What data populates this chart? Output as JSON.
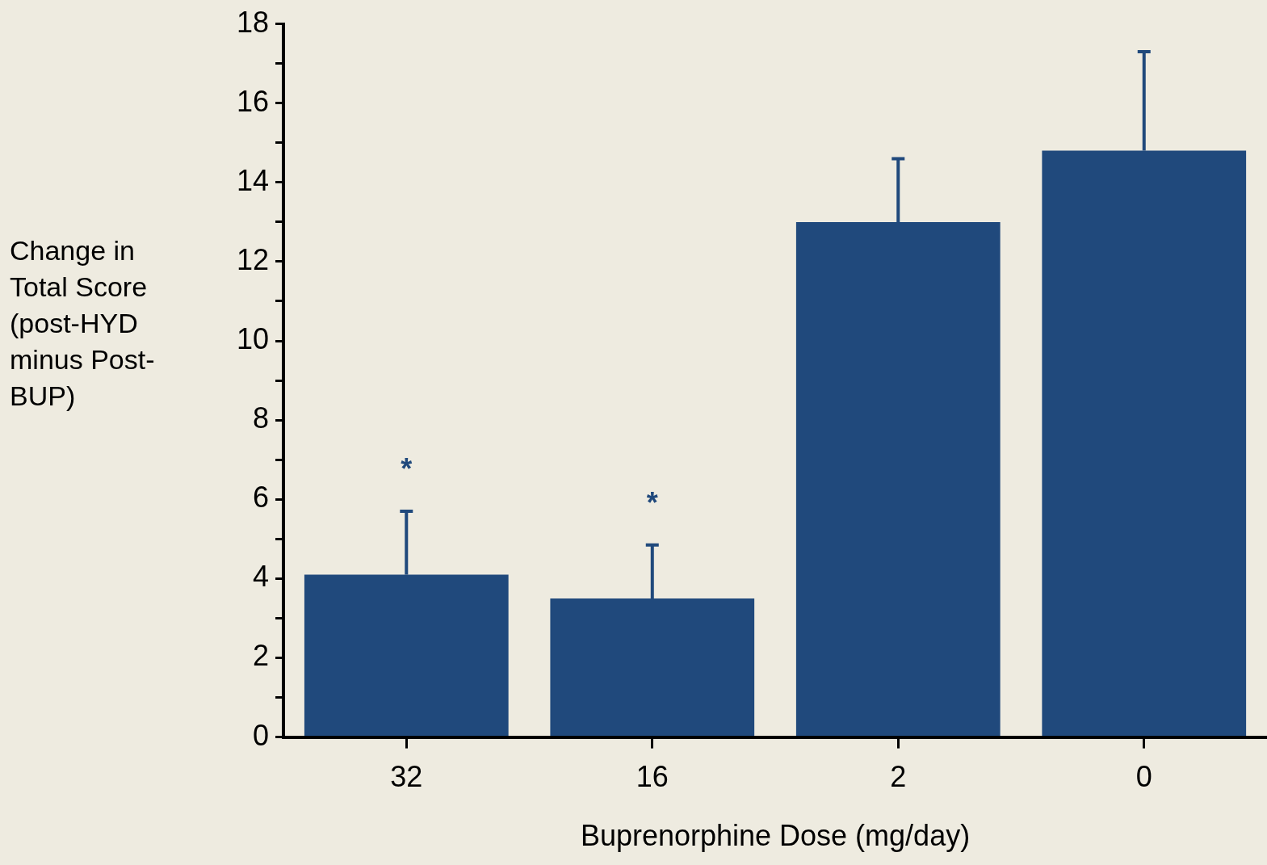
{
  "chart_data": {
    "type": "bar",
    "xlabel": "Buprenorphine Dose (mg/day)",
    "ylabel": "Change in Total Score (post-HYD minus Post-BUP)",
    "categories": [
      "32",
      "16",
      "2",
      "0"
    ],
    "values": [
      4.1,
      3.5,
      13.0,
      14.8
    ],
    "errors": [
      [
        4.1,
        5.7
      ],
      [
        3.5,
        4.85
      ],
      [
        13.0,
        14.6
      ],
      [
        14.8,
        17.3
      ]
    ],
    "color": "#20497c",
    "ylim": [
      0,
      18
    ],
    "yticks": [
      0,
      {
        "value": 1,
        "label": null
      },
      2,
      {
        "value": 3,
        "label": null
      },
      4,
      {
        "value": 5,
        "label": null
      },
      6,
      {
        "value": 7,
        "label": null
      },
      8,
      {
        "value": 9,
        "label": null
      },
      10,
      {
        "value": 11,
        "label": null
      },
      12,
      {
        "value": 13,
        "label": null
      },
      14,
      {
        "value": 15,
        "label": null
      },
      16,
      {
        "value": 17,
        "label": null
      },
      18
    ],
    "annotations": [
      "*",
      "*"
    ],
    "grid": false,
    "legend": false
  }
}
